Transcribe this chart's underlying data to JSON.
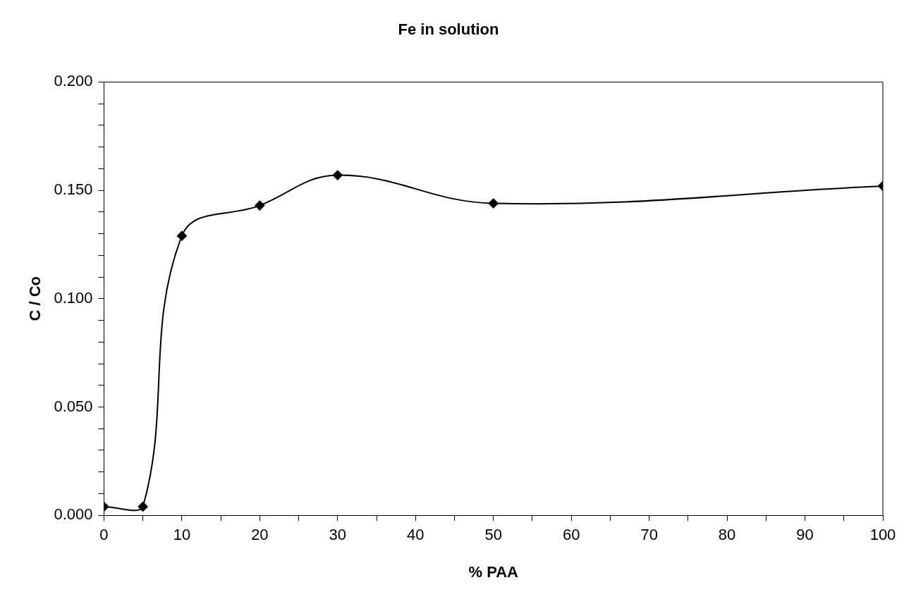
{
  "chart_data": {
    "type": "line",
    "title": "Fe in solution",
    "xlabel": "% PAA",
    "ylabel": "C / Co",
    "x": [
      0,
      5,
      10,
      20,
      30,
      50,
      100
    ],
    "series": [
      {
        "color": "#000000",
        "values": [
          0.004,
          0.004,
          0.129,
          0.143,
          0.157,
          0.144,
          0.152
        ]
      }
    ],
    "xlim": [
      0,
      100
    ],
    "xticks": [
      0,
      {
        "value": 5,
        "label": null
      },
      10,
      {
        "value": 15,
        "label": null
      },
      20,
      {
        "value": 25,
        "label": null
      },
      30,
      {
        "value": 35,
        "label": null
      },
      40,
      {
        "value": 45,
        "label": null
      },
      50,
      {
        "value": 55,
        "label": null
      },
      60,
      {
        "value": 65,
        "label": null
      },
      70,
      {
        "value": 75,
        "label": null
      },
      80,
      {
        "value": 85,
        "label": null
      },
      90,
      {
        "value": 95,
        "label": null
      },
      100
    ],
    "ylim": [
      0,
      0.2
    ],
    "yticks": [
      {
        "value": 0,
        "label": "0.000"
      },
      {
        "value": 0.01,
        "label": null
      },
      {
        "value": 0.02,
        "label": null
      },
      {
        "value": 0.03,
        "label": null
      },
      {
        "value": 0.04,
        "label": null
      },
      {
        "value": 0.05,
        "label": "0.050"
      },
      {
        "value": 0.06,
        "label": null
      },
      {
        "value": 0.07,
        "label": null
      },
      {
        "value": 0.08,
        "label": null
      },
      {
        "value": 0.09,
        "label": null
      },
      {
        "value": 0.1,
        "label": "0.100"
      },
      {
        "value": 0.11,
        "label": null
      },
      {
        "value": 0.12,
        "label": null
      },
      {
        "value": 0.13,
        "label": null
      },
      {
        "value": 0.14,
        "label": null
      },
      {
        "value": 0.15,
        "label": "0.150"
      },
      {
        "value": 0.16,
        "label": null
      },
      {
        "value": 0.17,
        "label": null
      },
      {
        "value": 0.18,
        "label": null
      },
      {
        "value": 0.19,
        "label": null
      },
      {
        "value": 0.2,
        "label": "0.200"
      }
    ],
    "grid": false,
    "legend": false,
    "marker": "diamond",
    "line_style": "solid"
  }
}
